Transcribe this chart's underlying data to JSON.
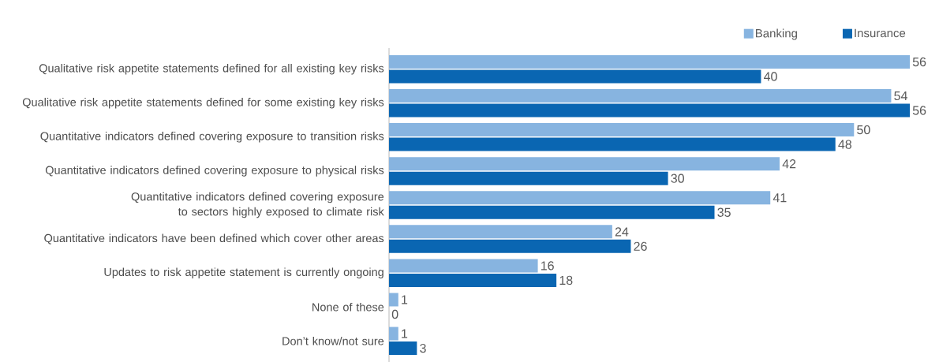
{
  "chart_data": {
    "type": "bar",
    "orientation": "horizontal",
    "data_labels": true,
    "legend": "top right",
    "categories": [
      "Qualitative risk appetite statements defined for all existing key risks",
      "Qualitative risk appetite statements defined for some existing key risks",
      "Quantitative indicators defined covering exposure to transition risks",
      "Quantitative indicators defined covering exposure to physical risks",
      "Quantitative indicators defined covering exposure to sectors highly exposed to climate risk",
      "Quantitative indicators have been defined which cover other areas",
      "Updates to risk appetite statement is currently ongoing",
      "None of these",
      "Don’t know/not sure"
    ],
    "series": [
      {
        "name": "Banking",
        "color": "#87b4e0",
        "values": [
          56,
          54,
          50,
          42,
          41,
          24,
          16,
          1,
          1
        ]
      },
      {
        "name": "Insurance",
        "color": "#0a66b2",
        "values": [
          40,
          56,
          48,
          30,
          35,
          26,
          18,
          0,
          3
        ]
      }
    ]
  }
}
